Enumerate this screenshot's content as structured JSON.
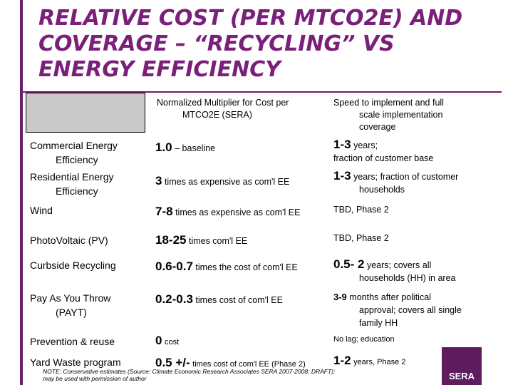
{
  "title": {
    "line1": "RELATIVE COST (PER MTCO2E) AND",
    "line2": "COVERAGE – “RECYCLING” VS",
    "line3": "ENERGY EFFICIENCY"
  },
  "header": {
    "multiplier_line1": "Normalized Multiplier for Cost per",
    "multiplier_line2": "MTCO2E (SERA)",
    "speed_line1": "Speed to implement and full",
    "speed_line2": "scale implementation",
    "speed_line3": "coverage"
  },
  "rows": [
    {
      "name_line1": "Commercial Energy",
      "name_line2": "Efficiency",
      "mult_value": "1.0",
      "mult_text": "– baseline",
      "speed_value": "1-3",
      "speed_text": "years;",
      "speed_line2": "fraction of customer base"
    },
    {
      "name_line1": "Residential Energy",
      "name_line2": "Efficiency",
      "mult_value": "3",
      "mult_text": "times as expensive as com'l EE",
      "speed_value": "1-3",
      "speed_text": "years; fraction of customer",
      "speed_line2": "households"
    },
    {
      "name_line1": "Wind",
      "mult_value": "7-8",
      "mult_text": "times as expensive as  com'l EE",
      "speed_text": "TBD, Phase 2"
    },
    {
      "name_line1": "PhotoVoltaic (PV)",
      "mult_value": "18-25",
      "mult_text": "times com'l EE",
      "speed_text": "TBD, Phase 2"
    },
    {
      "name_line1": "Curbside Recycling",
      "mult_value": "0.6-0.7",
      "mult_text": "times the cost of com'l EE",
      "speed_value": "0.5- 2",
      "speed_text": "years; covers all",
      "speed_line2": "households (HH) in area"
    },
    {
      "name_line1": "Pay As You Throw",
      "name_line2": "(PAYT)",
      "mult_value": "0.2-0.3",
      "mult_text": "times cost of com'l EE",
      "speed_value": "3-9",
      "speed_text": "months after political",
      "speed_line2": "approval; covers all single",
      "speed_line3": "family HH"
    },
    {
      "name_line1": "Prevention & reuse",
      "mult_value": "0",
      "mult_text": "cost",
      "speed_text": "No lag; education"
    },
    {
      "name_line1": "Yard Waste program",
      "mult_value": "0.5 +/-",
      "mult_text": "times cost of com'l EE (Phase 2)",
      "speed_value": "1-2",
      "speed_text": "years, Phase 2"
    }
  ],
  "note": {
    "line1": "NOTE: Conservative estimates  (Source:  Climate Economic Research Associates SERA 2007-2008; DRAFT);",
    "line2": "may be used with permission of author"
  },
  "logo": {
    "text": "SERA"
  },
  "colors": {
    "accent": "#7a1f7a",
    "logo_bg": "#5e1b5e",
    "header_fill": "#c9c9c9"
  }
}
